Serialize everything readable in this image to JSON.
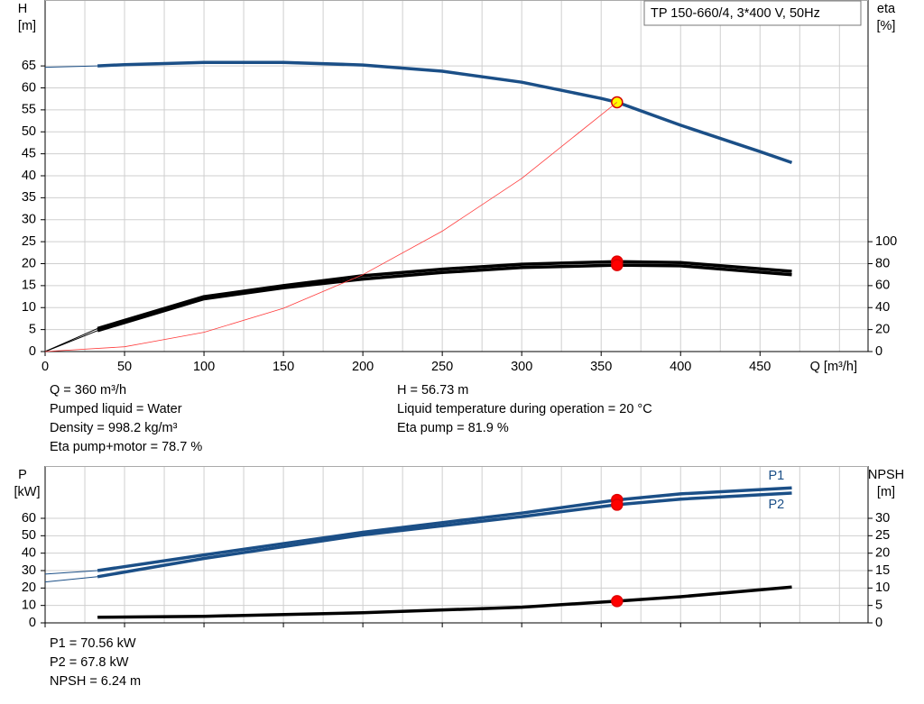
{
  "chart_data": [
    {
      "type": "line",
      "title": "TP 150-660/4, 3*400 V, 50Hz",
      "xlabel": "Q [m³/h]",
      "ylabel": "H",
      "yunit": "[m]",
      "y2label": "eta",
      "y2unit": "[%]",
      "xlim": [
        0,
        518
      ],
      "xticks": [
        0,
        50,
        100,
        150,
        200,
        250,
        300,
        350,
        400,
        450
      ],
      "xminor": [
        25,
        75,
        125,
        175,
        225,
        275,
        325,
        375,
        425,
        475,
        500
      ],
      "ylim": [
        0,
        80
      ],
      "yticks": [
        0,
        5,
        10,
        15,
        20,
        25,
        30,
        35,
        40,
        45,
        50,
        55,
        60,
        65
      ],
      "y2lim": [
        0,
        320
      ],
      "y2ticks": [
        0,
        20,
        40,
        60,
        80,
        100
      ],
      "grid": true,
      "duty_x": 360,
      "series": [
        {
          "color": "#1b4f87",
          "x": [
            0,
            33,
            50,
            100,
            150,
            200,
            250,
            300,
            350,
            360,
            400,
            450,
            470
          ],
          "values": [
            64.7,
            65,
            65.3,
            65.8,
            65.8,
            65.2,
            63.8,
            61.3,
            57.6,
            56.73,
            51.5,
            45.5,
            43
          ],
          "duty": 56.73,
          "duty_color": "#ffff00"
        },
        {
          "color": "#000000",
          "axis": "y2",
          "x": [
            0,
            33,
            100,
            150,
            200,
            250,
            300,
            360,
            400,
            470
          ],
          "values": [
            0,
            21,
            50,
            60,
            69,
            75,
            79.5,
            81.9,
            81,
            73
          ],
          "duty": 81.9,
          "duty_color": "#ff0000"
        },
        {
          "color": "#000000",
          "axis": "y2",
          "x": [
            0,
            33,
            100,
            150,
            200,
            250,
            300,
            360,
            400,
            470
          ],
          "values": [
            0,
            19,
            48,
            58,
            66,
            72,
            76.5,
            78.7,
            78,
            70
          ],
          "duty": 78.7,
          "duty_color": "#ff0000"
        },
        {
          "color": "#ff3b3b",
          "thin": true,
          "x": [
            0,
            50,
            100,
            150,
            200,
            250,
            300,
            360
          ],
          "values": [
            0,
            1.09,
            4.38,
            9.85,
            17.5,
            27.4,
            39.4,
            56.73
          ]
        }
      ],
      "notes": [
        [
          "Q = 360 m³/h",
          "Pumped liquid = Water",
          "Density = 998.2 kg/m³",
          "Eta pump+motor = 78.7 %"
        ],
        [
          "H = 56.73 m",
          "Liquid temperature during operation = 20 °C",
          "Eta pump = 81.9 %"
        ]
      ]
    },
    {
      "type": "line",
      "ylabel": "P",
      "yunit": "[kW]",
      "y2label": "NPSH",
      "y2unit": "[m]",
      "xlim": [
        0,
        518
      ],
      "xticks": [
        0,
        50,
        100,
        150,
        200,
        250,
        300,
        350,
        400,
        450
      ],
      "xminor": [
        25,
        75,
        125,
        175,
        225,
        275,
        325,
        375,
        425,
        475,
        500
      ],
      "ylim": [
        0,
        90
      ],
      "yticks": [
        0,
        10,
        20,
        30,
        40,
        50,
        60
      ],
      "y2lim": [
        0,
        45
      ],
      "y2ticks": [
        0,
        5,
        10,
        15,
        20,
        25,
        30
      ],
      "grid": true,
      "duty_x": 360,
      "series": [
        {
          "name": "P1",
          "color": "#1b4f87",
          "x": [
            0,
            33,
            100,
            200,
            300,
            360,
            400,
            470
          ],
          "values": [
            28,
            30,
            39,
            52,
            63,
            70.56,
            74,
            77.5
          ],
          "duty": 70.56,
          "duty_color": "#ff0000"
        },
        {
          "name": "P2",
          "color": "#1b4f87",
          "x": [
            0,
            33,
            100,
            200,
            300,
            360,
            400,
            470
          ],
          "values": [
            23.5,
            26.5,
            37,
            50.5,
            61,
            67.8,
            71,
            74.5
          ],
          "duty": 67.8,
          "duty_color": "#ff0000"
        },
        {
          "color": "#000000",
          "axis": "y2",
          "x": [
            33,
            100,
            200,
            300,
            360,
            400,
            470
          ],
          "values": [
            1.6,
            1.9,
            2.9,
            4.5,
            6.24,
            7.5,
            10.3
          ],
          "duty": 6.24,
          "duty_color": "#ff0000"
        }
      ],
      "notes": [
        [
          "P1 = 70.56 kW",
          "P2 = 67.8 kW",
          "NPSH = 6.24 m"
        ]
      ]
    }
  ]
}
